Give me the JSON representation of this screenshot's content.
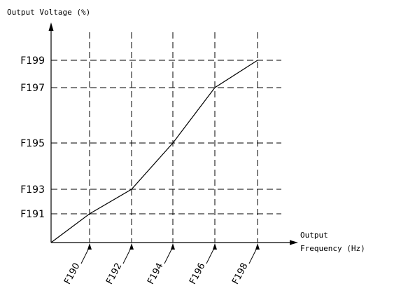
{
  "chart_data": {
    "type": "line",
    "ylabel": "Output Voltage (%)",
    "xlabel_line1": "Output",
    "xlabel_line2": "Frequency (Hz)",
    "x_ticks": [
      "F190",
      "F192",
      "F194",
      "F196",
      "F198"
    ],
    "y_ticks": [
      "F191",
      "F193",
      "F195",
      "F197",
      "F199"
    ],
    "grid": true,
    "series": [
      {
        "points": [
          {
            "x": "0",
            "y": "0"
          },
          {
            "x": "F190",
            "y": "F191"
          },
          {
            "x": "F192",
            "y": "F193"
          },
          {
            "x": "F194",
            "y": "F195"
          },
          {
            "x": "F196",
            "y": "F197"
          },
          {
            "x": "F198",
            "y": "F199"
          }
        ]
      }
    ]
  }
}
